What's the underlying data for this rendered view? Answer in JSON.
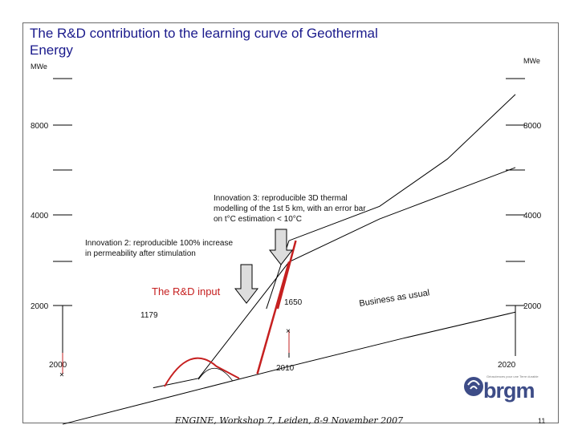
{
  "title": "The R&D contribution to the learning curve of Geothermal Energy",
  "footer": "ENGINE, Workshop 7, Leiden, 8-9 November 2007",
  "page_number": "11",
  "logo": {
    "tagline": "Géosciences pour une Terre durable",
    "word": "brgm",
    "color": "#3d4c87"
  },
  "colors": {
    "title": "#1a1a8c",
    "accent_red": "#c62020",
    "line": "#000000",
    "arrow_fill": "#dddddd"
  },
  "chart_data": {
    "type": "line",
    "title": "The R&D contribution to the learning curve of Geothermal Energy",
    "ylabel_left": "MWe",
    "ylabel_right": "MWe",
    "x_axis_labels": [
      "2000",
      "2010",
      "2020"
    ],
    "y_tick_labels": [
      "8000",
      "4000",
      "2000"
    ],
    "yscale": "log",
    "xlim": [
      2000,
      2020
    ],
    "series": [
      {
        "role": "business-as-usual",
        "x": [
          2000,
          2005,
          2010,
          2015,
          2020
        ],
        "y": [
          800,
          1000,
          1250,
          1550,
          1900
        ]
      },
      {
        "role": "with-innovation-2",
        "x": [
          2004,
          2006,
          2010,
          2014,
          2020
        ],
        "y": [
          1060,
          1140,
          2800,
          3900,
          5800
        ]
      },
      {
        "role": "with-innovation-3",
        "x": [
          2009,
          2010,
          2014,
          2017,
          2020
        ],
        "y": [
          1950,
          3300,
          4300,
          6200,
          10200
        ]
      }
    ],
    "points": [
      {
        "x": 2000,
        "y": 1179,
        "label": "1179"
      },
      {
        "x": 2010,
        "y": 1650,
        "label": "1650"
      }
    ],
    "annotations": {
      "rd_input": "The R&D input",
      "business": "Business as usual",
      "innovation2": "Innovation 2: reproducible 100% increase in permeability after stimulation",
      "innovation3": "Innovation 3: reproducible 3D thermal modelling of the 1st 5 km, with an error bar on t°C estimation < 10°C"
    },
    "grid": false
  }
}
